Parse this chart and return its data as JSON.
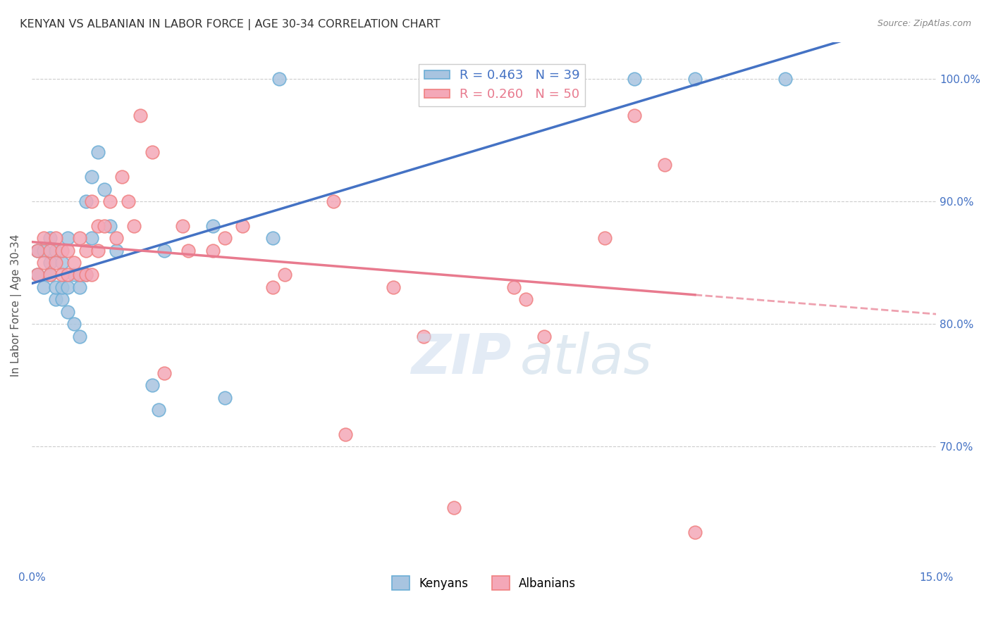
{
  "title": "KENYAN VS ALBANIAN IN LABOR FORCE | AGE 30-34 CORRELATION CHART",
  "source": "Source: ZipAtlas.com",
  "ylabel": "In Labor Force | Age 30-34",
  "xlim": [
    0.0,
    0.15
  ],
  "ylim": [
    0.6,
    1.03
  ],
  "ytick_labels": [
    "100.0%",
    "90.0%",
    "80.0%",
    "70.0%"
  ],
  "ytick_values": [
    1.0,
    0.9,
    0.8,
    0.7
  ],
  "bg_color": "#ffffff",
  "grid_color": "#cccccc",
  "kenyan_color": "#a8c4e0",
  "albanian_color": "#f4a8b8",
  "kenyan_edge": "#6baed6",
  "albanian_edge": "#f08080",
  "trend_kenyan": "#4472c4",
  "trend_albanian": "#e87a8e",
  "legend_R_kenyan": "R = 0.463   N = 39",
  "legend_R_albanian": "R = 0.260   N = 50",
  "kenyan_x": [
    0.001,
    0.001,
    0.002,
    0.002,
    0.003,
    0.003,
    0.003,
    0.004,
    0.004,
    0.004,
    0.005,
    0.005,
    0.005,
    0.006,
    0.006,
    0.006,
    0.007,
    0.007,
    0.008,
    0.008,
    0.009,
    0.009,
    0.01,
    0.01,
    0.011,
    0.012,
    0.013,
    0.014,
    0.02,
    0.021,
    0.022,
    0.03,
    0.032,
    0.04,
    0.041,
    0.09,
    0.1,
    0.11,
    0.125
  ],
  "kenyan_y": [
    0.84,
    0.86,
    0.83,
    0.86,
    0.84,
    0.85,
    0.87,
    0.82,
    0.83,
    0.86,
    0.82,
    0.83,
    0.85,
    0.81,
    0.83,
    0.87,
    0.8,
    0.84,
    0.79,
    0.83,
    0.84,
    0.9,
    0.87,
    0.92,
    0.94,
    0.91,
    0.88,
    0.86,
    0.75,
    0.73,
    0.86,
    0.88,
    0.74,
    0.87,
    1.0,
    1.0,
    1.0,
    1.0,
    1.0
  ],
  "albanian_x": [
    0.001,
    0.001,
    0.002,
    0.002,
    0.003,
    0.003,
    0.004,
    0.004,
    0.005,
    0.005,
    0.006,
    0.006,
    0.007,
    0.008,
    0.008,
    0.009,
    0.009,
    0.01,
    0.01,
    0.011,
    0.011,
    0.012,
    0.013,
    0.014,
    0.015,
    0.016,
    0.017,
    0.018,
    0.02,
    0.022,
    0.025,
    0.026,
    0.03,
    0.032,
    0.035,
    0.04,
    0.042,
    0.05,
    0.052,
    0.06,
    0.065,
    0.07,
    0.08,
    0.082,
    0.085,
    0.09,
    0.095,
    0.1,
    0.105,
    0.11
  ],
  "albanian_y": [
    0.84,
    0.86,
    0.85,
    0.87,
    0.84,
    0.86,
    0.85,
    0.87,
    0.84,
    0.86,
    0.84,
    0.86,
    0.85,
    0.84,
    0.87,
    0.84,
    0.86,
    0.84,
    0.9,
    0.86,
    0.88,
    0.88,
    0.9,
    0.87,
    0.92,
    0.9,
    0.88,
    0.97,
    0.94,
    0.76,
    0.88,
    0.86,
    0.86,
    0.87,
    0.88,
    0.83,
    0.84,
    0.9,
    0.71,
    0.83,
    0.79,
    0.65,
    0.83,
    0.82,
    0.79,
    1.0,
    0.87,
    0.97,
    0.93,
    0.63
  ]
}
